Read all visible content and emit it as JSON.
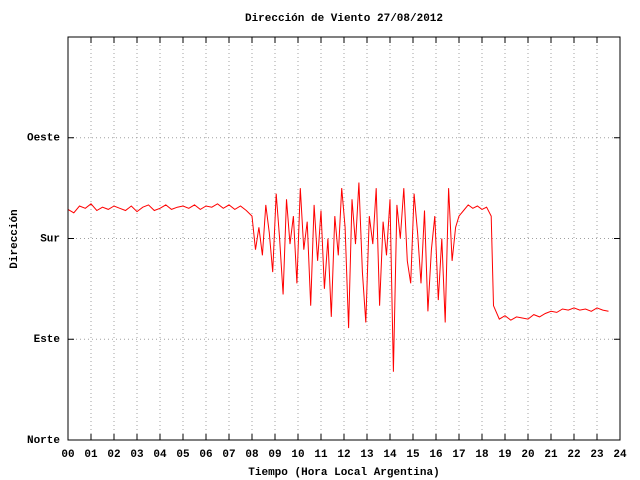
{
  "chart_data": {
    "type": "line",
    "title": "Dirección de Viento 27/08/2012",
    "xlabel": "Tiempo (Hora Local Argentina)",
    "ylabel": "Dirección",
    "xlim": [
      0,
      24
    ],
    "xticks": [
      {
        "value": 0,
        "label": "00"
      },
      {
        "value": 1,
        "label": "01"
      },
      {
        "value": 2,
        "label": "02"
      },
      {
        "value": 3,
        "label": "03"
      },
      {
        "value": 4,
        "label": "04"
      },
      {
        "value": 5,
        "label": "05"
      },
      {
        "value": 6,
        "label": "06"
      },
      {
        "value": 7,
        "label": "07"
      },
      {
        "value": 8,
        "label": "08"
      },
      {
        "value": 9,
        "label": "09"
      },
      10,
      11,
      12,
      13,
      14,
      15,
      16,
      17,
      18,
      19,
      20,
      21,
      22,
      23,
      24
    ],
    "ylim": [
      0,
      360
    ],
    "yticks": [
      {
        "value": 0,
        "label": "Norte"
      },
      {
        "value": 90,
        "label": "Este"
      },
      {
        "value": 180,
        "label": "Sur"
      },
      {
        "value": 270,
        "label": "Oeste"
      }
    ],
    "grid": true,
    "series": [
      {
        "color": "#ff0000",
        "x": [
          0,
          0.25,
          0.5,
          0.75,
          1,
          1.25,
          1.5,
          1.75,
          2,
          2.25,
          2.5,
          2.75,
          3,
          3.25,
          3.5,
          3.75,
          4,
          4.25,
          4.5,
          4.75,
          5,
          5.25,
          5.5,
          5.75,
          6,
          6.25,
          6.5,
          6.75,
          7,
          7.25,
          7.5,
          7.75,
          8,
          8.15,
          8.3,
          8.45,
          8.6,
          8.75,
          8.9,
          9.05,
          9.2,
          9.35,
          9.5,
          9.65,
          9.8,
          9.95,
          10.1,
          10.25,
          10.4,
          10.55,
          10.7,
          10.85,
          11,
          11.15,
          11.3,
          11.45,
          11.6,
          11.75,
          11.9,
          12.05,
          12.2,
          12.35,
          12.5,
          12.65,
          12.8,
          12.95,
          13.1,
          13.25,
          13.4,
          13.55,
          13.7,
          13.85,
          14,
          14.15,
          14.3,
          14.45,
          14.6,
          14.75,
          14.9,
          15.05,
          15.2,
          15.35,
          15.5,
          15.65,
          15.8,
          15.95,
          16.1,
          16.25,
          16.4,
          16.55,
          16.7,
          16.85,
          17,
          17.2,
          17.4,
          17.6,
          17.8,
          18,
          18.2,
          18.4,
          18.5,
          18.75,
          19,
          19.25,
          19.5,
          19.75,
          20,
          20.25,
          20.5,
          20.75,
          21,
          21.25,
          21.5,
          21.75,
          22,
          22.25,
          22.5,
          22.75,
          23,
          23.25,
          23.5
        ],
        "values": [
          206,
          203,
          209,
          207,
          211,
          205,
          208,
          206,
          209,
          207,
          205,
          209,
          204,
          208,
          210,
          205,
          207,
          210,
          206,
          208,
          209,
          207,
          210,
          206,
          209,
          208,
          211,
          207,
          210,
          206,
          209,
          205,
          200,
          170,
          190,
          165,
          210,
          185,
          150,
          220,
          180,
          130,
          215,
          175,
          200,
          140,
          225,
          170,
          195,
          120,
          210,
          160,
          205,
          135,
          180,
          110,
          200,
          165,
          225,
          190,
          100,
          215,
          175,
          230,
          150,
          105,
          200,
          175,
          225,
          120,
          195,
          165,
          215,
          61,
          210,
          180,
          225,
          160,
          140,
          220,
          185,
          140,
          205,
          115,
          170,
          200,
          125,
          180,
          105,
          225,
          160,
          190,
          200,
          205,
          210,
          207,
          209,
          206,
          208,
          200,
          120,
          108,
          111,
          107,
          110,
          109,
          108,
          112,
          110,
          113,
          115,
          114,
          117,
          116,
          118,
          116,
          117,
          115,
          118,
          116,
          115
        ]
      }
    ]
  }
}
